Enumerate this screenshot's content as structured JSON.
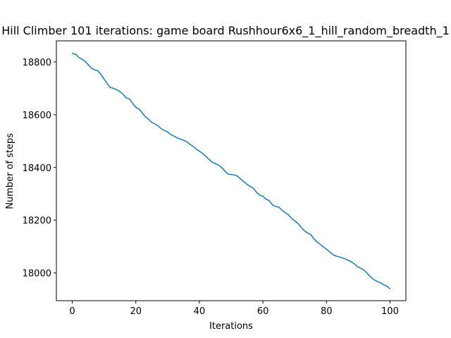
{
  "chart_data": {
    "type": "line",
    "title": "Hill Climber 101 iterations: game board Rushhour6x6_1_hill_random_breadth_1",
    "xlabel": "Iterations",
    "ylabel": "Number of steps",
    "xlim": [
      -5,
      105
    ],
    "ylim": [
      17895,
      18880
    ],
    "xticks": [
      0,
      20,
      40,
      60,
      80,
      100
    ],
    "yticks": [
      18000,
      18200,
      18400,
      18600,
      18800
    ],
    "grid": false,
    "line_color": "#1f77b4",
    "series": [
      {
        "x": [
          0,
          1,
          2,
          3,
          4,
          5,
          6,
          7,
          8,
          9,
          10,
          11,
          12,
          13,
          14,
          15,
          16,
          17,
          18,
          19,
          20,
          21,
          22,
          23,
          24,
          25,
          26,
          27,
          28,
          29,
          30,
          31,
          32,
          33,
          34,
          35,
          36,
          37,
          38,
          39,
          40,
          41,
          42,
          43,
          44,
          45,
          46,
          47,
          48,
          49,
          50,
          51,
          52,
          53,
          54,
          55,
          56,
          57,
          58,
          59,
          60,
          61,
          62,
          63,
          64,
          65,
          66,
          67,
          68,
          69,
          70,
          71,
          72,
          73,
          74,
          75,
          76,
          77,
          78,
          79,
          80,
          81,
          82,
          83,
          84,
          85,
          86,
          87,
          88,
          89,
          90,
          91,
          92,
          93,
          94,
          95,
          96,
          97,
          98,
          99,
          100
        ],
        "values": [
          18832,
          18830,
          18818,
          18811,
          18803,
          18790,
          18777,
          18770,
          18767,
          18753,
          18735,
          18718,
          18703,
          18700,
          18694,
          18688,
          18677,
          18663,
          18660,
          18643,
          18628,
          18622,
          18607,
          18592,
          18583,
          18571,
          18565,
          18558,
          18547,
          18540,
          18535,
          18524,
          18519,
          18512,
          18508,
          18503,
          18498,
          18488,
          18480,
          18470,
          18462,
          18453,
          18443,
          18431,
          18420,
          18415,
          18409,
          18400,
          18387,
          18375,
          18373,
          18372,
          18367,
          18356,
          18346,
          18336,
          18328,
          18321,
          18306,
          18295,
          18291,
          18280,
          18274,
          18258,
          18252,
          18250,
          18238,
          18229,
          18221,
          18207,
          18198,
          18188,
          18174,
          18161,
          18152,
          18146,
          18130,
          18118,
          18109,
          18099,
          18090,
          18080,
          18070,
          18064,
          18061,
          18057,
          18053,
          18047,
          18041,
          18032,
          18022,
          18017,
          18009,
          17996,
          17984,
          17974,
          17968,
          17963,
          17955,
          17950,
          17940
        ]
      }
    ]
  }
}
